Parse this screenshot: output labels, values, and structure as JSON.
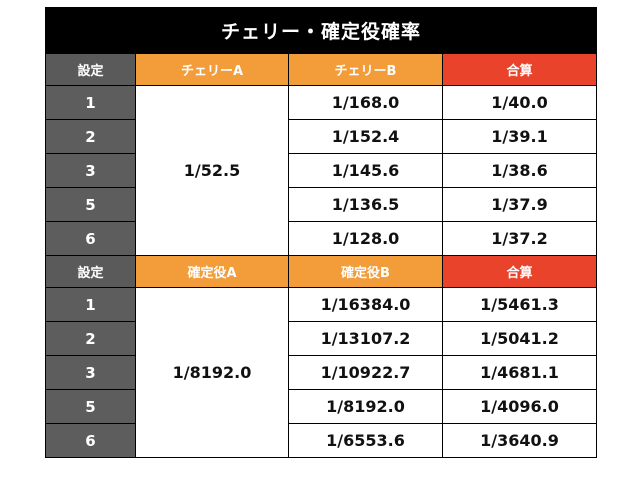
{
  "title": "チェリー・確定役確率",
  "section1": {
    "headers": [
      "設定",
      "チェリーA",
      "チェリーB",
      "合算"
    ],
    "col_a_merged": "1/52.5",
    "rows": [
      {
        "setting": "1",
        "b": "1/168.0",
        "total": "1/40.0"
      },
      {
        "setting": "2",
        "b": "1/152.4",
        "total": "1/39.1"
      },
      {
        "setting": "3",
        "b": "1/145.6",
        "total": "1/38.6"
      },
      {
        "setting": "5",
        "b": "1/136.5",
        "total": "1/37.9"
      },
      {
        "setting": "6",
        "b": "1/128.0",
        "total": "1/37.2"
      }
    ]
  },
  "section2": {
    "headers": [
      "設定",
      "確定役A",
      "確定役B",
      "合算"
    ],
    "col_a_merged": "1/8192.0",
    "rows": [
      {
        "setting": "1",
        "b": "1/16384.0",
        "total": "1/5461.3"
      },
      {
        "setting": "2",
        "b": "1/13107.2",
        "total": "1/5041.2"
      },
      {
        "setting": "3",
        "b": "1/10922.7",
        "total": "1/4681.1"
      },
      {
        "setting": "5",
        "b": "1/8192.0",
        "total": "1/4096.0"
      },
      {
        "setting": "6",
        "b": "1/6553.6",
        "total": "1/3640.9"
      }
    ]
  },
  "colors": {
    "title_bg": "#000000",
    "setting_bg": "#5d5d5d",
    "orange": "#f29c3a",
    "red": "#e9432b"
  }
}
